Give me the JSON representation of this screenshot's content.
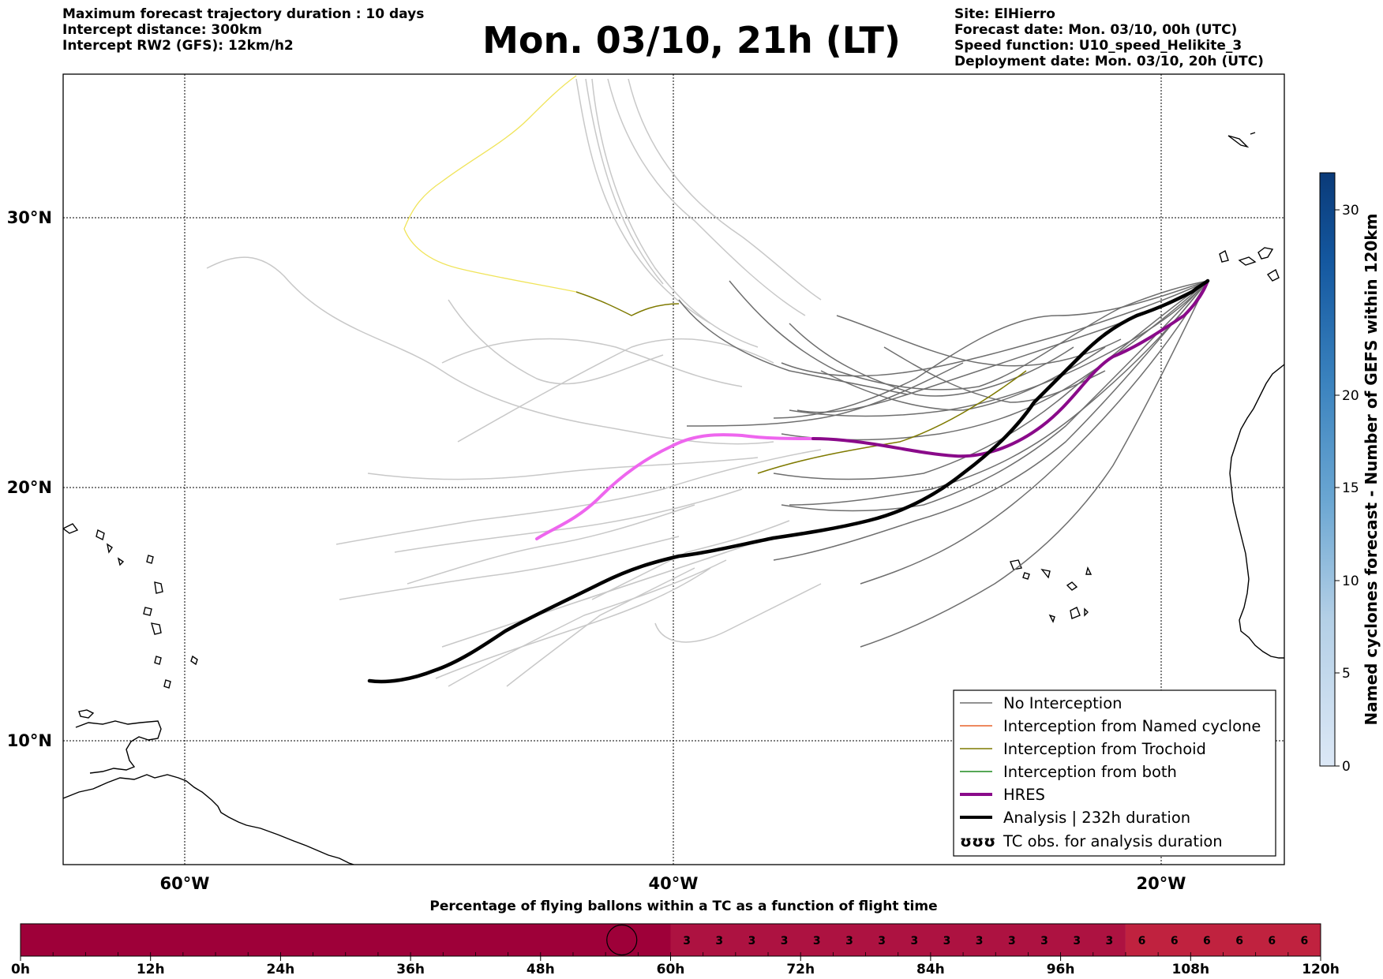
{
  "header": {
    "left": [
      "Maximum forecast trajectory duration : 10 days",
      "Intercept distance: 300km",
      "Intercept RW2 (GFS):  12km/h2"
    ],
    "right": [
      "Site: ElHierro",
      "Forecast date: Mon. 03/10, 00h (UTC)",
      "Speed function: U10_speed_Helikite_3",
      "Deployment date: Mon. 03/10, 20h (UTC)"
    ],
    "title": "Mon. 03/10, 21h (LT)"
  },
  "map": {
    "lat_labels": [
      "30°N",
      "20°N",
      "10°N"
    ],
    "lon_labels": [
      "60°W",
      "40°W",
      "20°W"
    ],
    "colors": {
      "no_interception": "#6e6e6e",
      "ensemble_faint": "#c8c8c8",
      "named_cyclone": "#e8622a",
      "trochoid": "#7f7a00",
      "both": "#1e8a1e",
      "hres": "#8a0a8a",
      "hres_light": "#ee66ee",
      "analysis": "#000000",
      "trochoid_light": "#f0e45a"
    }
  },
  "legend": {
    "items": [
      {
        "label": "No Interception",
        "icon": "line-gray"
      },
      {
        "label": "Interception from Named cyclone",
        "icon": "line-orange"
      },
      {
        "label": "Interception from Trochoid",
        "icon": "line-olive"
      },
      {
        "label": "Interception from both",
        "icon": "line-green"
      },
      {
        "label": "HRES",
        "icon": "line-purple"
      },
      {
        "label": "Analysis | 232h duration",
        "icon": "line-black"
      },
      {
        "label": "TC obs. for analysis duration",
        "icon": "tc-symbols"
      }
    ],
    "tc_symbol": "ʊʊʊ"
  },
  "colorbar": {
    "title": "Named cyclones forecast - Number of GEFS within 120km",
    "ticks": [
      "0",
      "5",
      "10",
      "15",
      "20",
      "30"
    ],
    "range": [
      0,
      32
    ]
  },
  "time_bar": {
    "title": "Percentage of flying ballons within a TC as a function of flight time",
    "hour_labels": [
      "0h",
      "12h",
      "24h",
      "36h",
      "48h",
      "60h",
      "72h",
      "84h",
      "96h",
      "108h",
      "120h"
    ],
    "values_hours_60_to_102": [
      "3",
      "3",
      "3",
      "3",
      "3",
      "3",
      "3",
      "3",
      "3",
      "3",
      "3",
      "3",
      "3",
      "3"
    ],
    "values_hours_102_to_120": [
      "6",
      "6",
      "6",
      "6",
      "6",
      "6"
    ],
    "colors": {
      "zero": "#9e0039",
      "three": "#ad1241",
      "six": "#c0223f"
    }
  }
}
